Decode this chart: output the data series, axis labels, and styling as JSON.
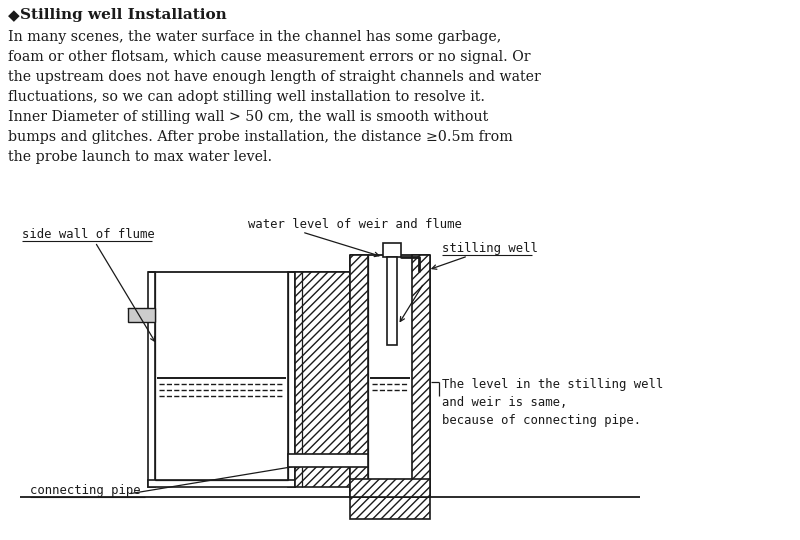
{
  "title_diamond": "◆",
  "title_text": "Stilling well Installation",
  "body_lines": [
    "In many scenes, the water surface in the channel has some garbage,",
    "foam or other flotsam, which cause measurement errors or no signal. Or",
    "the upstream does not have enough length of straight channels and water",
    "fluctuations, so we can adopt stilling well installation to resolve it.",
    "Inner Diameter of stilling wall > 50 cm, the wall is smooth without",
    "bumps and glitches. After probe installation, the distance ≥0.5m from",
    "the probe launch to max water level."
  ],
  "label_side_wall": "side wall of flume",
  "label_water_level": "water level of weir and flume",
  "label_stilling_well": "stilling well",
  "label_connecting_pipe": "connecting pipe",
  "label_level_note": "The level in the stilling well\nand weir is same,\nbecause of connecting pipe.",
  "bg_color": "#ffffff",
  "line_color": "#1a1a1a"
}
